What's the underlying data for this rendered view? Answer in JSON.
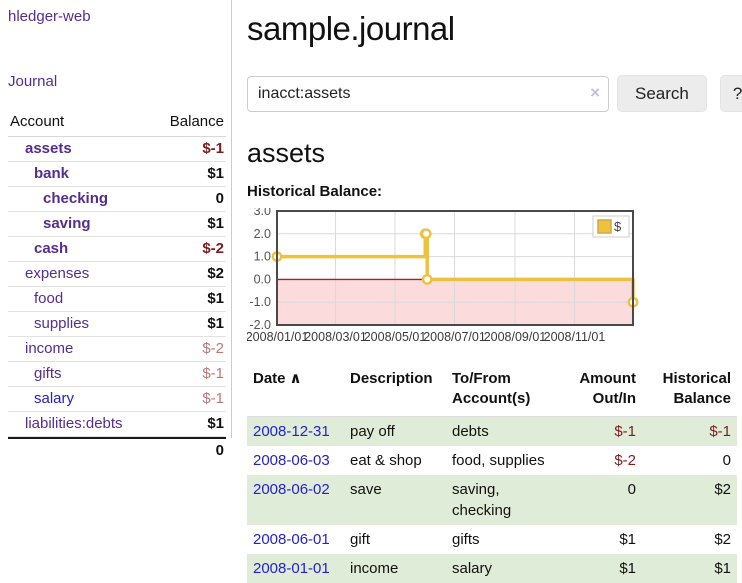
{
  "app": {
    "brand": "hledger-web",
    "nav_journal": "Journal"
  },
  "sidebar": {
    "account_header": "Account",
    "balance_header": "Balance",
    "accounts": [
      {
        "name": "assets",
        "depth": 1,
        "bold": true,
        "balance": "$-1",
        "balance_style": "neg",
        "link_style": "purple"
      },
      {
        "name": "bank",
        "depth": 2,
        "bold": true,
        "balance": "$1",
        "balance_style": "pos",
        "link_style": "purple"
      },
      {
        "name": "checking",
        "depth": 3,
        "bold": true,
        "balance": "0",
        "balance_style": "pos",
        "link_style": "purple"
      },
      {
        "name": "saving",
        "depth": 3,
        "bold": true,
        "balance": "$1",
        "balance_style": "pos",
        "link_style": "purple"
      },
      {
        "name": "cash",
        "depth": 2,
        "bold": true,
        "balance": "$-2",
        "balance_style": "neg",
        "link_style": "purple"
      },
      {
        "name": "expenses",
        "depth": 1,
        "bold": false,
        "balance": "$2",
        "balance_style": "pos",
        "link_style": "purple"
      },
      {
        "name": "food",
        "depth": 2,
        "bold": false,
        "balance": "$1",
        "balance_style": "pos",
        "link_style": "purple"
      },
      {
        "name": "supplies",
        "depth": 2,
        "bold": false,
        "balance": "$1",
        "balance_style": "pos",
        "link_style": "purple"
      },
      {
        "name": "income",
        "depth": 1,
        "bold": false,
        "balance": "$-2",
        "balance_style": "negmuted",
        "link_style": "purple"
      },
      {
        "name": "gifts",
        "depth": 2,
        "bold": false,
        "balance": "$-1",
        "balance_style": "negmuted",
        "link_style": "purple"
      },
      {
        "name": "salary",
        "depth": 2,
        "bold": false,
        "balance": "$-1",
        "balance_style": "negmuted",
        "link_style": "blue"
      },
      {
        "name": "liabilities:debts",
        "depth": 1,
        "bold": false,
        "balance": "$1",
        "balance_style": "pos",
        "link_style": "purple"
      }
    ],
    "total": "0"
  },
  "header": {
    "title": "sample.journal"
  },
  "search": {
    "value": "inacct:assets",
    "clear_icon": "×",
    "search_label": "Search",
    "help_label": "?"
  },
  "register": {
    "heading": "assets",
    "chart_label": "Historical Balance:",
    "table": {
      "headers": {
        "date": "Date",
        "sort_caret": "∧",
        "description": "Description",
        "accounts": "To/From Account(s)",
        "amount": "Amount Out/In",
        "balance": "Historical Balance"
      },
      "rows": [
        {
          "date": "2008-12-31",
          "description": "pay off",
          "accounts": "debts",
          "amount": "$-1",
          "amount_neg": true,
          "balance": "$-1",
          "balance_neg": true,
          "striped": true
        },
        {
          "date": "2008-06-03",
          "description": "eat & shop",
          "accounts": "food, supplies",
          "amount": "$-2",
          "amount_neg": true,
          "balance": "0",
          "balance_neg": false,
          "striped": false
        },
        {
          "date": "2008-06-02",
          "description": "save",
          "accounts": "saving, checking",
          "amount": "0",
          "amount_neg": false,
          "balance": "$2",
          "balance_neg": false,
          "striped": true
        },
        {
          "date": "2008-06-01",
          "description": "gift",
          "accounts": "gifts",
          "amount": "$1",
          "amount_neg": false,
          "balance": "$2",
          "balance_neg": false,
          "striped": false
        },
        {
          "date": "2008-01-01",
          "description": "income",
          "accounts": "salary",
          "amount": "$1",
          "amount_neg": false,
          "balance": "$1",
          "balance_neg": false,
          "striped": true
        }
      ]
    }
  },
  "chart_data": {
    "type": "line",
    "title": "Historical Balance:",
    "step": true,
    "series": [
      {
        "name": "$",
        "color": "#edc240",
        "points": [
          [
            "2008-01-01",
            1
          ],
          [
            "2008-06-01",
            2
          ],
          [
            "2008-06-02",
            2
          ],
          [
            "2008-06-03",
            0
          ],
          [
            "2008-12-31",
            -1
          ]
        ]
      }
    ],
    "x_range": [
      "2008-01-01",
      "2008-12-31"
    ],
    "ylim": [
      -2,
      3
    ],
    "y_ticks": [
      {
        "v": 3,
        "label": "3.0"
      },
      {
        "v": 2,
        "label": "2.0"
      },
      {
        "v": 1,
        "label": "1.0"
      },
      {
        "v": 0,
        "label": "0.0"
      },
      {
        "v": -1,
        "label": "-1.0"
      },
      {
        "v": -2,
        "label": "-2.0"
      }
    ],
    "x_ticks": [
      {
        "date": "2008-01-01",
        "label": "2008/01/01"
      },
      {
        "date": "2008-03-01",
        "label": "2008/03/01"
      },
      {
        "date": "2008-05-01",
        "label": "2008/05/01"
      },
      {
        "date": "2008-07-01",
        "label": "2008/07/01"
      },
      {
        "date": "2008-09-01",
        "label": "2008/09/01"
      },
      {
        "date": "2008-11-01",
        "label": "2008/11/01"
      }
    ],
    "grid": true,
    "legend_position": "top-right",
    "colors": {
      "grid": "#d9d9d9",
      "border": "#4a4a4a",
      "negative_region": "#fbdbdb",
      "zero_line": "#a02622",
      "tick_text": "#545454",
      "marker_fill": "#ffffff"
    }
  }
}
